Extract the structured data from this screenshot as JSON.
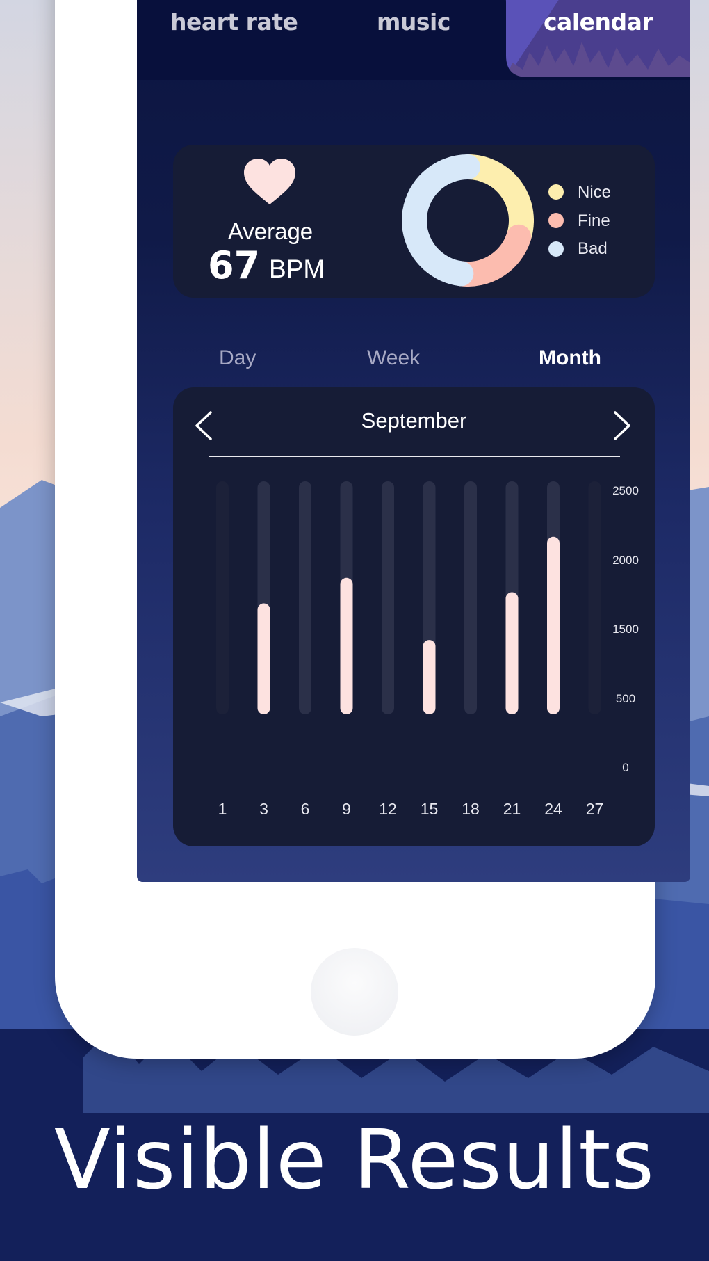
{
  "tabs": [
    {
      "label": "heart rate",
      "active": false
    },
    {
      "label": "music",
      "active": false
    },
    {
      "label": "calendar",
      "active": true
    }
  ],
  "stats": {
    "heart_icon": "heart-icon",
    "average_label": "Average",
    "bpm_value": "67",
    "bpm_unit": "BPM",
    "legend": [
      {
        "label": "Nice",
        "color": "#fdeeae"
      },
      {
        "label": "Fine",
        "color": "#fcbcaf"
      },
      {
        "label": "Bad",
        "color": "#d7e8f9"
      }
    ]
  },
  "periods": [
    {
      "label": "Day",
      "active": false
    },
    {
      "label": "Week",
      "active": false
    },
    {
      "label": "Month",
      "active": true
    }
  ],
  "month": {
    "label": "September",
    "prev_icon": "chevron-left-icon",
    "next_icon": "chevron-right-icon"
  },
  "headline": "Visible Results",
  "colors": {
    "bar_fill": "#fde2e0",
    "bar_track": "#2b3049",
    "card_bg": "#161c36",
    "accent_yellow": "#fdeeae",
    "accent_salmon": "#fcbcaf",
    "accent_blue": "#d7e8f9"
  },
  "chart_data": [
    {
      "type": "pie",
      "labels": [
        "Nice",
        "Fine",
        "Bad"
      ],
      "values": [
        30,
        22,
        48
      ],
      "colors": [
        "#fdeeae",
        "#fcbcaf",
        "#d7e8f9"
      ],
      "title": ""
    },
    {
      "type": "bar",
      "categories": [
        "1",
        "3",
        "6",
        "9",
        "12",
        "15",
        "18",
        "21",
        "24",
        "27"
      ],
      "values": [
        0,
        1000,
        0,
        1230,
        0,
        670,
        0,
        1100,
        1600,
        0
      ],
      "ytick_labels": [
        "2500",
        "2000",
        "1500",
        "500",
        "0"
      ],
      "title": "",
      "xlabel": "",
      "ylabel": "",
      "ylim": [
        0,
        2100
      ],
      "grid": false,
      "legend": "none"
    }
  ]
}
